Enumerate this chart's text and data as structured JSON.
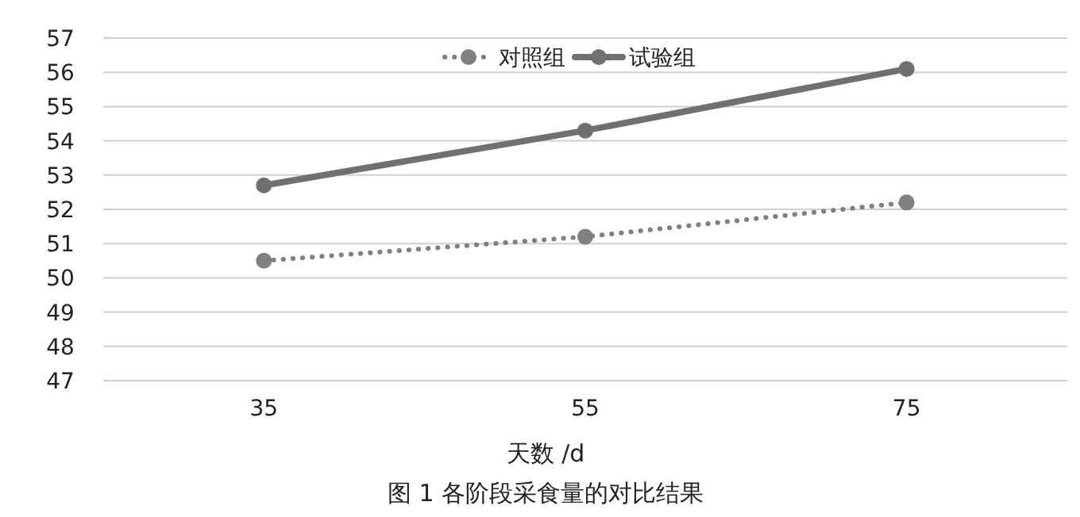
{
  "chart_data": {
    "type": "line",
    "title": "图 1  各阶段采食量的对比结果",
    "xlabel": "天数 /d",
    "categories": [
      "35",
      "55",
      "75"
    ],
    "series": [
      {
        "name": "对照组",
        "color": "#808080",
        "values": [
          50.5,
          51.2,
          52.2
        ],
        "line_style": "dotted"
      },
      {
        "name": "试验组",
        "color": "#707070",
        "values": [
          52.7,
          54.3,
          56.1
        ],
        "line_style": "solid"
      }
    ],
    "ylim": [
      47,
      57
    ],
    "yticks": [
      47,
      48,
      49,
      50,
      51,
      52,
      53,
      54,
      55,
      56,
      57
    ],
    "grid": "y",
    "legend": "top",
    "marker": "circle"
  }
}
